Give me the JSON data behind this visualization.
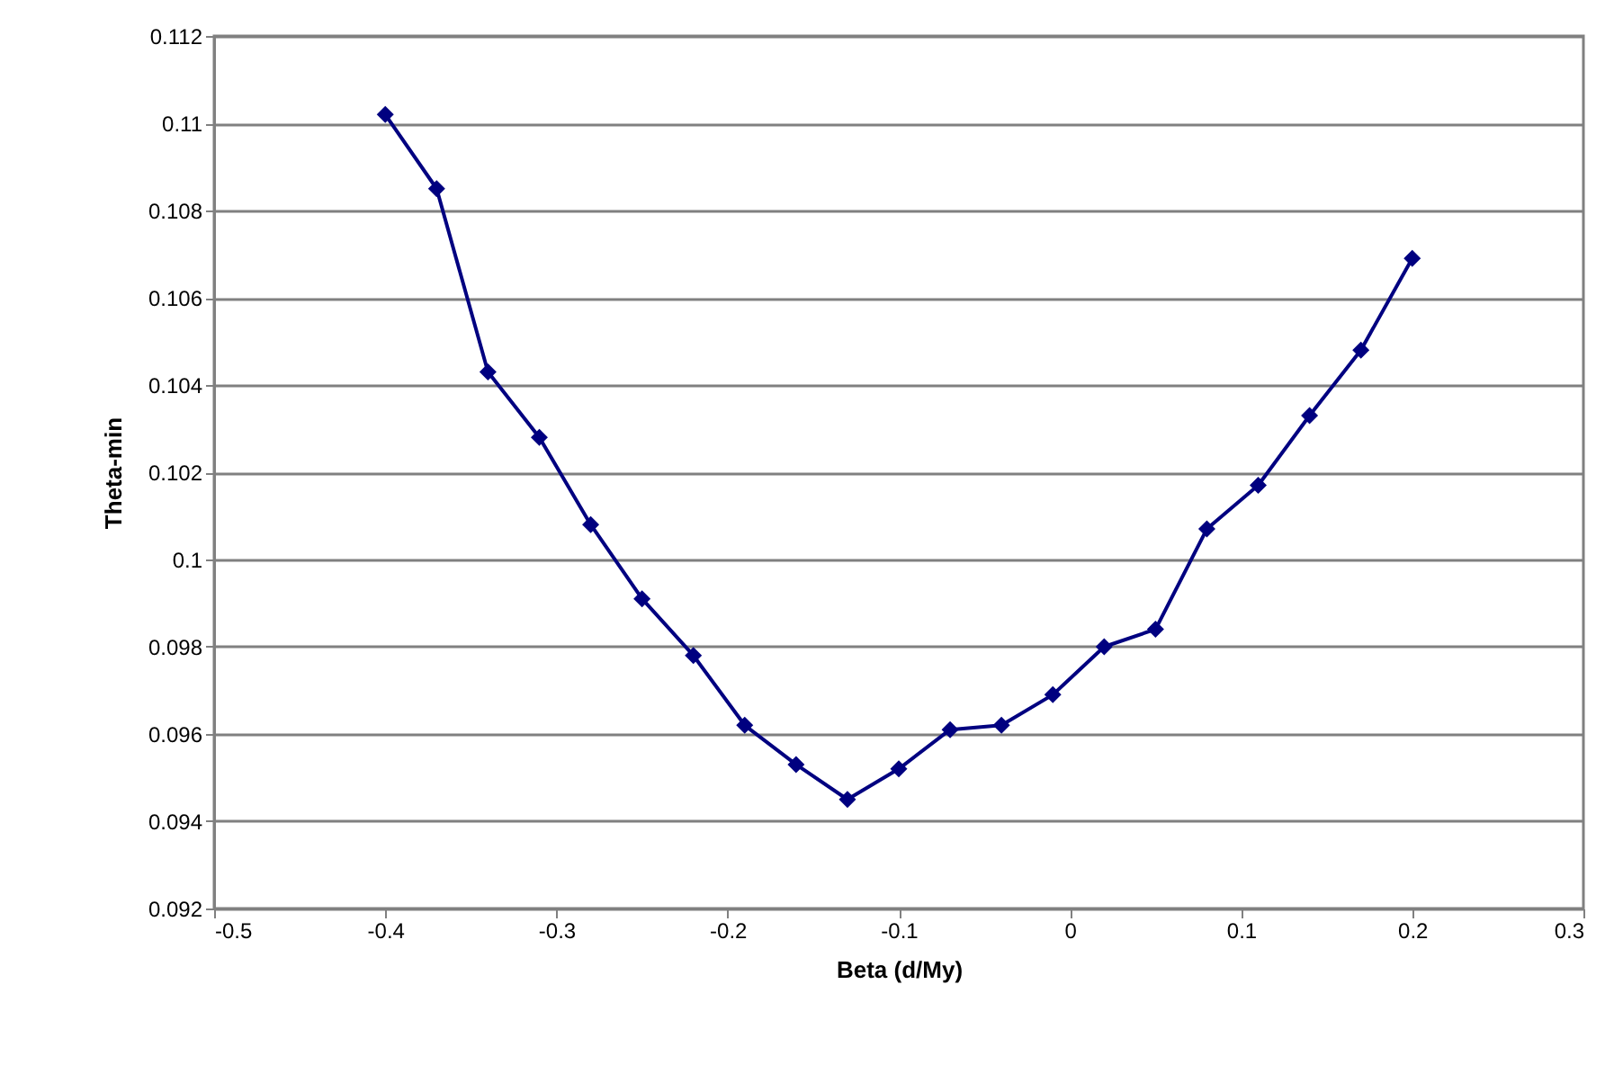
{
  "chart_data": {
    "type": "line",
    "xlabel": "Beta (d/My)",
    "ylabel": "Theta-min",
    "x": [
      -0.4,
      -0.37,
      -0.34,
      -0.31,
      -0.28,
      -0.25,
      -0.22,
      -0.19,
      -0.16,
      -0.13,
      -0.1,
      -0.07,
      -0.04,
      -0.01,
      0.02,
      0.05,
      0.08,
      0.11,
      0.14,
      0.17,
      0.2
    ],
    "series": [
      {
        "color": "#000080",
        "values": [
          0.1102,
          0.1085,
          0.1043,
          0.1028,
          0.1008,
          0.0991,
          0.0978,
          0.0962,
          0.0953,
          0.0945,
          0.0952,
          0.0961,
          0.0962,
          0.0969,
          0.098,
          0.0984,
          0.1007,
          0.1017,
          0.1033,
          0.1048,
          0.1069
        ]
      }
    ],
    "xlim": [
      -0.5,
      0.3
    ],
    "xticks": [
      -0.5,
      -0.4,
      -0.3,
      -0.2,
      -0.1,
      0,
      0.1,
      0.2,
      0.3
    ],
    "ylim": [
      0.092,
      0.112
    ],
    "yticks": [
      0.092,
      0.094,
      0.096,
      0.098,
      0.1,
      0.102,
      0.104,
      0.106,
      0.108,
      0.11,
      0.112
    ],
    "grid": "y",
    "marker": "diamond",
    "line_style": "solid"
  }
}
